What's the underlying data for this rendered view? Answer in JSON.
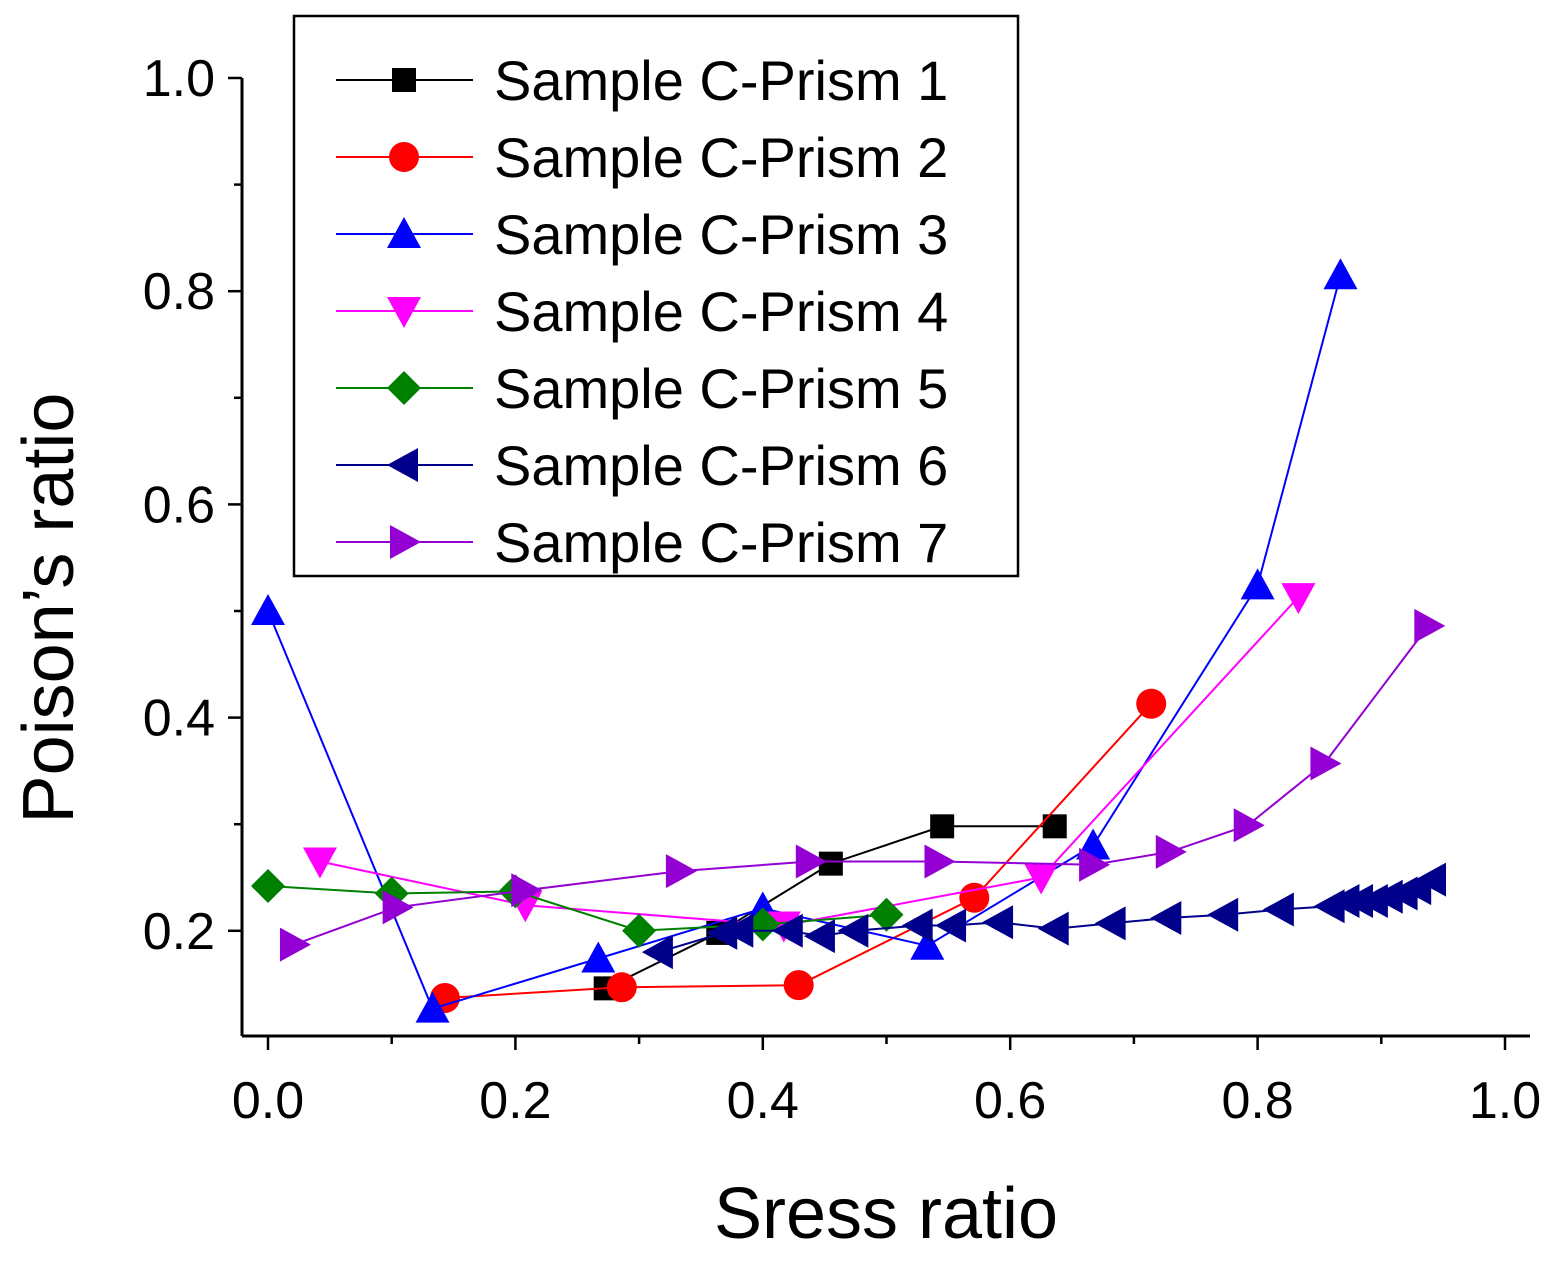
{
  "chart_data": {
    "type": "line",
    "title": "",
    "xlabel": "Sress ratio",
    "ylabel": "Poison’s ratio",
    "xlim": [
      -0.02,
      1.02
    ],
    "ylim": [
      0.1,
      1.0
    ],
    "x_ticks": [
      0.0,
      0.2,
      0.4,
      0.6,
      0.8,
      1.0
    ],
    "x_tick_labels": [
      "0.0",
      "0.2",
      "0.4",
      "0.6",
      "0.8",
      "1.0"
    ],
    "y_ticks": [
      0.2,
      0.4,
      0.6,
      0.8,
      1.0
    ],
    "y_tick_labels": [
      "0.2",
      "0.4",
      "0.6",
      "0.8",
      "1.0"
    ],
    "grid": false,
    "legend_position": "top-center",
    "series": [
      {
        "name": "Sample C-Prism 1",
        "color": "#000000",
        "marker": "square",
        "x": [
          0.273,
          0.364,
          0.455,
          0.545,
          0.636
        ],
        "y": [
          0.146,
          0.198,
          0.263,
          0.298,
          0.298
        ]
      },
      {
        "name": "Sample C-Prism 2",
        "color": "#ff0000",
        "marker": "circle",
        "x": [
          0.143,
          0.286,
          0.429,
          0.571,
          0.714
        ],
        "y": [
          0.137,
          0.147,
          0.149,
          0.231,
          0.413
        ]
      },
      {
        "name": "Sample C-Prism 3",
        "color": "#0000ff",
        "marker": "triangle-up",
        "x": [
          0.0,
          0.133,
          0.267,
          0.4,
          0.533,
          0.667,
          0.8,
          0.867
        ],
        "y": [
          0.5,
          0.127,
          0.174,
          0.221,
          0.186,
          0.28,
          0.524,
          0.815
        ]
      },
      {
        "name": "Sample C-Prism 4",
        "color": "#ff00ff",
        "marker": "triangle-down",
        "x": [
          0.042,
          0.208,
          0.417,
          0.625,
          0.833
        ],
        "y": [
          0.265,
          0.224,
          0.205,
          0.25,
          0.513
        ]
      },
      {
        "name": "Sample C-Prism 5",
        "color": "#008000",
        "marker": "diamond",
        "x": [
          0.0,
          0.1,
          0.2,
          0.3,
          0.4,
          0.5
        ],
        "y": [
          0.242,
          0.235,
          0.237,
          0.2,
          0.206,
          0.215
        ]
      },
      {
        "name": "Sample C-Prism 6",
        "color": "#00008b",
        "marker": "triangle-left",
        "x": [
          0.316,
          0.368,
          0.381,
          0.421,
          0.447,
          0.474,
          0.526,
          0.553,
          0.591,
          0.636,
          0.682,
          0.727,
          0.773,
          0.818,
          0.859,
          0.871,
          0.882,
          0.894,
          0.906,
          0.918,
          0.929,
          0.941
        ],
        "y": [
          0.18,
          0.198,
          0.2,
          0.2,
          0.195,
          0.2,
          0.205,
          0.205,
          0.208,
          0.202,
          0.207,
          0.212,
          0.215,
          0.22,
          0.223,
          0.228,
          0.228,
          0.228,
          0.232,
          0.235,
          0.24,
          0.248
        ]
      },
      {
        "name": "Sample C-Prism 7",
        "color": "#9400d3",
        "marker": "triangle-right",
        "x": [
          0.021,
          0.104,
          0.208,
          0.333,
          0.438,
          0.542,
          0.667,
          0.729,
          0.792,
          0.854,
          0.938
        ],
        "y": [
          0.187,
          0.222,
          0.238,
          0.256,
          0.265,
          0.265,
          0.262,
          0.274,
          0.299,
          0.357,
          0.486
        ]
      }
    ]
  }
}
